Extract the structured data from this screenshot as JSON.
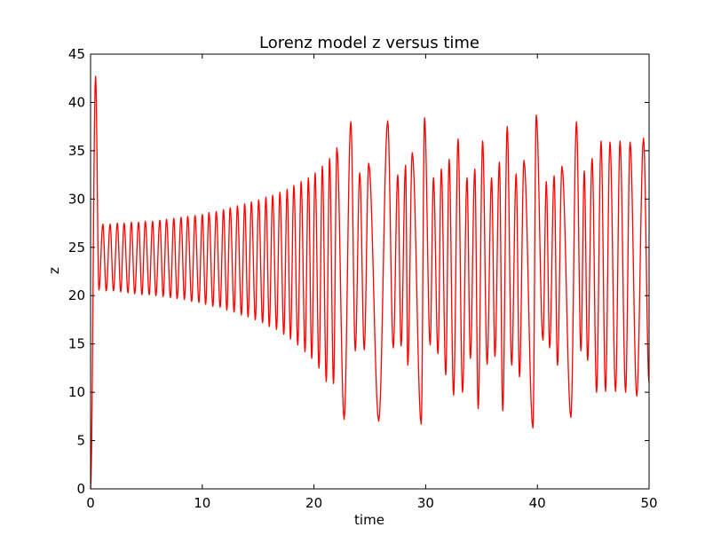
{
  "chart_data": {
    "type": "line",
    "title": "Lorenz model z versus time",
    "xlabel": "time",
    "ylabel": "z",
    "xlim": [
      0,
      50
    ],
    "ylim": [
      0,
      45
    ],
    "xticks": [
      0,
      10,
      20,
      30,
      40,
      50
    ],
    "yticks": [
      0,
      5,
      10,
      15,
      20,
      25,
      30,
      35,
      40,
      45
    ],
    "xtick_labels": [
      "0",
      "10",
      "20",
      "30",
      "40",
      "50"
    ],
    "ytick_labels": [
      "0",
      "5",
      "10",
      "15",
      "20",
      "25",
      "30",
      "35",
      "40",
      "45"
    ],
    "grid": false,
    "legend": false,
    "series": [
      {
        "color": "#ff0000",
        "peaks": [
          [
            0.45,
            42.7
          ],
          [
            1.1,
            27.4
          ],
          [
            1.75,
            27.4
          ],
          [
            2.4,
            27.5
          ],
          [
            3.0,
            27.5
          ],
          [
            3.65,
            27.6
          ],
          [
            4.3,
            27.6
          ],
          [
            4.9,
            27.7
          ],
          [
            5.55,
            27.7
          ],
          [
            6.2,
            27.8
          ],
          [
            6.8,
            27.9
          ],
          [
            7.45,
            28.0
          ],
          [
            8.1,
            28.1
          ],
          [
            8.7,
            28.2
          ],
          [
            9.35,
            28.3
          ],
          [
            10.0,
            28.4
          ],
          [
            10.6,
            28.6
          ],
          [
            11.25,
            28.7
          ],
          [
            11.9,
            28.9
          ],
          [
            12.5,
            29.1
          ],
          [
            13.15,
            29.3
          ],
          [
            13.8,
            29.5
          ],
          [
            14.4,
            29.7
          ],
          [
            15.05,
            29.9
          ],
          [
            15.7,
            30.2
          ],
          [
            16.3,
            30.4
          ],
          [
            16.95,
            30.7
          ],
          [
            17.6,
            31.0
          ],
          [
            18.2,
            31.4
          ],
          [
            18.85,
            31.8
          ],
          [
            19.5,
            32.2
          ],
          [
            20.1,
            32.7
          ],
          [
            20.75,
            33.4
          ],
          [
            21.4,
            34.2
          ],
          [
            22.05,
            35.3
          ],
          [
            23.3,
            38.0
          ],
          [
            24.1,
            32.7
          ],
          [
            24.9,
            33.7
          ],
          [
            26.6,
            38.1
          ],
          [
            27.5,
            32.5
          ],
          [
            28.2,
            33.5
          ],
          [
            28.8,
            34.8
          ],
          [
            29.9,
            38.4
          ],
          [
            30.7,
            32.2
          ],
          [
            31.4,
            33.1
          ],
          [
            32.1,
            34.1
          ],
          [
            32.9,
            36.2
          ],
          [
            33.7,
            32.2
          ],
          [
            34.4,
            33.1
          ],
          [
            35.1,
            36.0
          ],
          [
            35.9,
            32.2
          ],
          [
            36.6,
            33.8
          ],
          [
            37.3,
            37.5
          ],
          [
            38.1,
            32.6
          ],
          [
            38.8,
            34.0
          ],
          [
            39.9,
            38.7
          ],
          [
            40.8,
            31.8
          ],
          [
            41.5,
            32.4
          ],
          [
            42.2,
            33.4
          ],
          [
            43.5,
            38.0
          ],
          [
            44.2,
            32.9
          ],
          [
            44.9,
            34.2
          ],
          [
            45.7,
            36.0
          ],
          [
            46.5,
            35.9
          ],
          [
            47.4,
            36.0
          ],
          [
            48.3,
            35.9
          ],
          [
            49.5,
            36.3
          ]
        ],
        "troughs": [
          [
            0.0,
            0.0
          ],
          [
            0.75,
            20.6
          ],
          [
            1.4,
            20.5
          ],
          [
            2.05,
            20.5
          ],
          [
            2.7,
            20.4
          ],
          [
            3.35,
            20.3
          ],
          [
            3.95,
            20.2
          ],
          [
            4.6,
            20.1
          ],
          [
            5.25,
            20.1
          ],
          [
            5.85,
            20.0
          ],
          [
            6.5,
            19.9
          ],
          [
            7.15,
            19.8
          ],
          [
            7.75,
            19.7
          ],
          [
            8.4,
            19.6
          ],
          [
            9.05,
            19.4
          ],
          [
            9.7,
            19.3
          ],
          [
            10.3,
            19.1
          ],
          [
            10.95,
            18.9
          ],
          [
            11.6,
            18.8
          ],
          [
            12.2,
            18.5
          ],
          [
            12.85,
            18.3
          ],
          [
            13.5,
            18.0
          ],
          [
            14.1,
            17.8
          ],
          [
            14.75,
            17.5
          ],
          [
            15.4,
            17.2
          ],
          [
            16.0,
            16.8
          ],
          [
            16.65,
            16.5
          ],
          [
            17.3,
            16.0
          ],
          [
            17.9,
            15.5
          ],
          [
            18.55,
            14.9
          ],
          [
            19.2,
            14.2
          ],
          [
            19.8,
            13.5
          ],
          [
            20.45,
            12.5
          ],
          [
            21.1,
            11.1
          ],
          [
            21.75,
            10.9
          ],
          [
            22.7,
            7.2
          ],
          [
            23.7,
            14.3
          ],
          [
            24.5,
            14.4
          ],
          [
            25.8,
            7.0
          ],
          [
            27.1,
            14.6
          ],
          [
            27.8,
            14.8
          ],
          [
            28.4,
            12.8
          ],
          [
            29.6,
            6.7
          ],
          [
            30.4,
            14.9
          ],
          [
            31.1,
            14.0
          ],
          [
            31.8,
            11.8
          ],
          [
            32.5,
            9.7
          ],
          [
            33.3,
            10.0
          ],
          [
            34.0,
            13.5
          ],
          [
            34.7,
            8.3
          ],
          [
            35.5,
            12.9
          ],
          [
            36.2,
            13.7
          ],
          [
            36.9,
            8.1
          ],
          [
            37.7,
            12.8
          ],
          [
            38.4,
            11.6
          ],
          [
            39.6,
            6.3
          ],
          [
            40.5,
            15.4
          ],
          [
            41.1,
            14.6
          ],
          [
            41.8,
            12.8
          ],
          [
            43.0,
            7.4
          ],
          [
            43.9,
            14.3
          ],
          [
            44.5,
            13.3
          ],
          [
            45.3,
            10.0
          ],
          [
            46.1,
            10.1
          ],
          [
            47.0,
            10.1
          ],
          [
            47.9,
            10.0
          ],
          [
            48.9,
            9.6
          ],
          [
            50.0,
            11.0
          ]
        ]
      }
    ]
  }
}
